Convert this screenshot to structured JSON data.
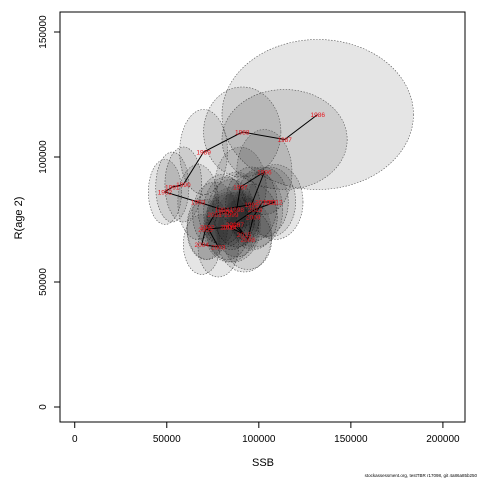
{
  "chart_data": {
    "type": "scatter",
    "xlabel": "SSB",
    "ylabel": "R(age 2)",
    "xlim": [
      -8000,
      212000
    ],
    "ylim": [
      -6000,
      158000
    ],
    "xticks": [
      0,
      50000,
      100000,
      150000,
      200000
    ],
    "yticks": [
      0,
      50000,
      100000,
      150000
    ],
    "grid": false,
    "footer": "stockassessment.org, testTBR r17098, git 4a86a85b250",
    "colors": {
      "label": "#e8141c",
      "ellipse_fill": "#000000",
      "ellipse_stroke": "#555555",
      "path": "#000000"
    },
    "points": [
      {
        "year": "1986",
        "ssb": 132000,
        "rec": 117000,
        "sd_ssb": 52000,
        "sd_rec": 30000
      },
      {
        "year": "1987",
        "ssb": 114000,
        "rec": 107000,
        "sd_ssb": 34000,
        "sd_rec": 20000
      },
      {
        "year": "1988",
        "ssb": 91000,
        "rec": 110000,
        "sd_ssb": 21000,
        "sd_rec": 18000
      },
      {
        "year": "1989",
        "ssb": 70000,
        "rec": 102000,
        "sd_ssb": 13000,
        "sd_rec": 17000
      },
      {
        "year": "1990",
        "ssb": 59000,
        "rec": 89000,
        "sd_ssb": 10000,
        "sd_rec": 15000
      },
      {
        "year": "1991",
        "ssb": 53000,
        "rec": 88000,
        "sd_ssb": 9000,
        "sd_rec": 14000
      },
      {
        "year": "1992",
        "ssb": 49000,
        "rec": 86000,
        "sd_ssb": 9000,
        "sd_rec": 13000
      },
      {
        "year": "1993",
        "ssb": 67000,
        "rec": 82000,
        "sd_ssb": 11000,
        "sd_rec": 15000
      },
      {
        "year": "1994",
        "ssb": 80000,
        "rec": 79000,
        "sd_ssb": 13000,
        "sd_rec": 14000
      },
      {
        "year": "1995",
        "ssb": 96000,
        "rec": 81000,
        "sd_ssb": 14000,
        "sd_rec": 15000
      },
      {
        "year": "1996",
        "ssb": 103000,
        "rec": 94000,
        "sd_ssb": 15000,
        "sd_rec": 17000
      },
      {
        "year": "1997",
        "ssb": 90000,
        "rec": 88000,
        "sd_ssb": 14000,
        "sd_rec": 16000
      },
      {
        "year": "1998",
        "ssb": 88000,
        "rec": 79000,
        "sd_ssb": 13000,
        "sd_rec": 15000
      },
      {
        "year": "1999",
        "ssb": 85000,
        "rec": 77000,
        "sd_ssb": 13000,
        "sd_rec": 14000
      },
      {
        "year": "2000",
        "ssb": 82000,
        "rec": 78000,
        "sd_ssb": 12000,
        "sd_rec": 14000
      },
      {
        "year": "2001",
        "ssb": 76000,
        "rec": 77000,
        "sd_ssb": 12000,
        "sd_rec": 13000
      },
      {
        "year": "2002",
        "ssb": 72000,
        "rec": 72000,
        "sd_ssb": 11000,
        "sd_rec": 13000
      },
      {
        "year": "2003",
        "ssb": 78000,
        "rec": 64000,
        "sd_ssb": 11000,
        "sd_rec": 12000
      },
      {
        "year": "2004",
        "ssb": 69000,
        "rec": 65000,
        "sd_ssb": 10000,
        "sd_rec": 12000
      },
      {
        "year": "2005",
        "ssb": 71000,
        "rec": 71000,
        "sd_ssb": 10000,
        "sd_rec": 12000
      },
      {
        "year": "2006",
        "ssb": 83000,
        "rec": 72000,
        "sd_ssb": 12000,
        "sd_rec": 13000
      },
      {
        "year": "2007",
        "ssb": 88000,
        "rec": 73000,
        "sd_ssb": 12000,
        "sd_rec": 13000
      },
      {
        "year": "2008",
        "ssb": 94000,
        "rec": 67000,
        "sd_ssb": 13000,
        "sd_rec": 12000
      },
      {
        "year": "2009",
        "ssb": 97000,
        "rec": 76000,
        "sd_ssb": 13000,
        "sd_rec": 13000
      },
      {
        "year": "2010",
        "ssb": 102000,
        "rec": 82000,
        "sd_ssb": 14000,
        "sd_rec": 14000
      },
      {
        "year": "2011",
        "ssb": 106000,
        "rec": 82000,
        "sd_ssb": 14000,
        "sd_rec": 14000
      },
      {
        "year": "2012",
        "ssb": 109000,
        "rec": 82000,
        "sd_ssb": 15000,
        "sd_rec": 15000
      },
      {
        "year": "2013",
        "ssb": 98000,
        "rec": 79000,
        "sd_ssb": 15000,
        "sd_rec": 15000
      },
      {
        "year": "2014",
        "ssb": 84000,
        "rec": 72000,
        "sd_ssb": 14000,
        "sd_rec": 14000
      },
      {
        "year": "2015",
        "ssb": 92000,
        "rec": 69000,
        "sd_ssb": 15000,
        "sd_rec": 15000
      },
      {
        "year": "2016",
        "ssb": 86000,
        "rec": 73000,
        "sd_ssb": 15000,
        "sd_rec": 15000
      }
    ]
  }
}
